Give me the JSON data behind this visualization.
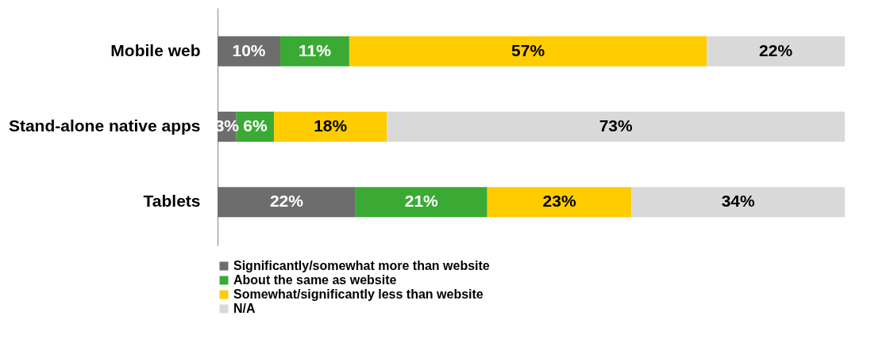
{
  "chart_data": {
    "type": "bar",
    "orientation": "horizontal",
    "stacked": true,
    "categories": [
      "Mobile web",
      "Stand-alone native apps",
      "Tablets"
    ],
    "series": [
      {
        "name": "Significantly/somewhat more than website",
        "color": "#6d6d6d",
        "values": [
          10,
          3,
          22
        ],
        "value_labels": [
          "10%",
          "3%",
          "22%"
        ]
      },
      {
        "name": "About the same as website",
        "color": "#3aaa35",
        "values": [
          11,
          6,
          21
        ],
        "value_labels": [
          "11%",
          "6%",
          "21%"
        ]
      },
      {
        "name": "Somewhat/significantly less than website",
        "color": "#ffcc00",
        "values": [
          57,
          18,
          23
        ],
        "value_labels": [
          "57%",
          "18%",
          "23%"
        ]
      },
      {
        "name": "N/A",
        "color": "#d9d9d9",
        "values": [
          22,
          73,
          34
        ],
        "value_labels": [
          "22%",
          "73%",
          "34%"
        ]
      }
    ],
    "legend": "bottom",
    "grid": false
  }
}
